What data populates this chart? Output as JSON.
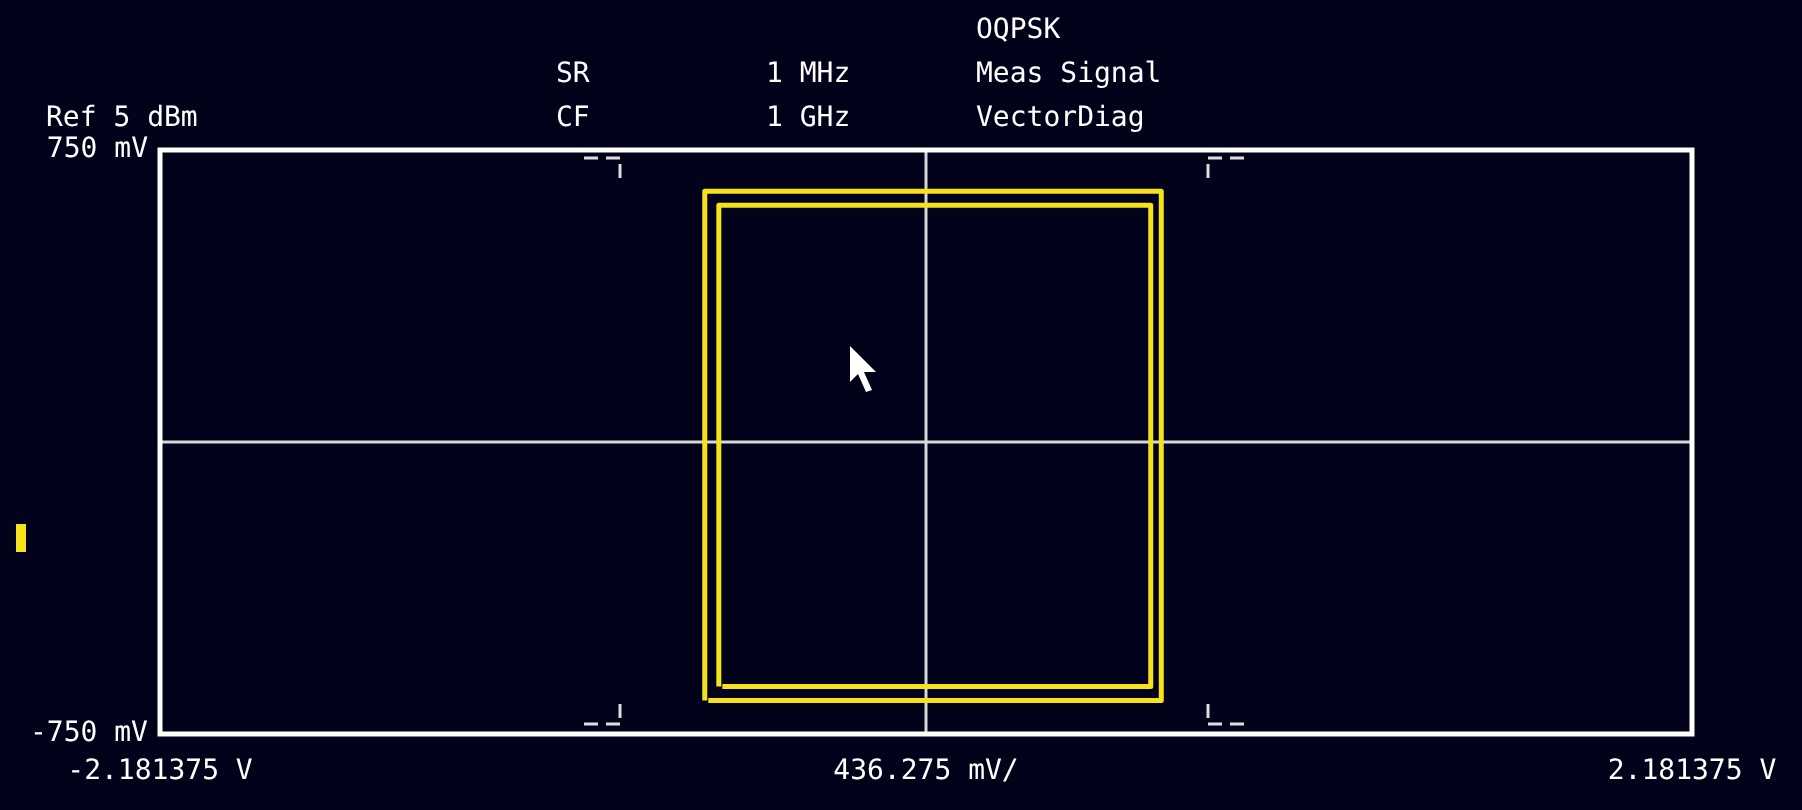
{
  "chart_data": {
    "type": "line",
    "annotations": [
      "Ref 5 dBm",
      "SR",
      "1 MHz",
      "CF",
      "1 GHz",
      "OQPSK",
      "Meas Signal",
      "VectorDiag"
    ],
    "xlabel": "436.275 mV/",
    "series": [
      {
        "color": "#f5e21a",
        "x": [
          -0.63,
          -0.63,
          -0.63,
          0.0,
          0.67,
          0.67,
          0.67,
          0.0,
          -0.62
        ],
        "values": [
          -664,
          0,
          644,
          644,
          644,
          0,
          -664,
          -664,
          -664
        ]
      },
      {
        "color": "#f5e21a",
        "x": [
          -0.59,
          -0.59,
          -0.59,
          0.0,
          0.64,
          0.64,
          0.64,
          0.0,
          -0.58
        ],
        "values": [
          -628,
          0,
          608,
          608,
          608,
          0,
          -628,
          -628,
          -628
        ]
      }
    ],
    "xlim": [
      -2.181375,
      2.181375
    ],
    "xticks": [
      {
        "value": -2.181375,
        "label": "-2.181375 V"
      },
      {
        "value": 0,
        "label": null
      },
      {
        "value": 2.181375,
        "label": "2.181375 V"
      }
    ],
    "ylim": [
      -750,
      750
    ],
    "yticks": [
      {
        "value": 750,
        "label": "750 mV"
      },
      {
        "value": 0,
        "label": null
      },
      {
        "value": -750,
        "label": "-750 mV"
      }
    ],
    "grid": true,
    "legend": false,
    "marker": "none",
    "line_style": "solid"
  }
}
